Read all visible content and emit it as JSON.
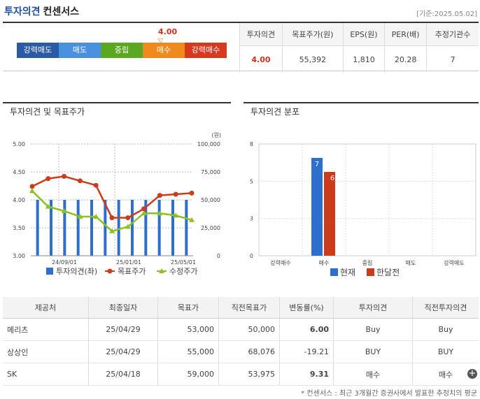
{
  "header": {
    "title_part1": "투자의견",
    "title_part2": "컨센서스",
    "date": "[기준:2025.05.02]"
  },
  "gauge": {
    "current_value": "4.00",
    "indicator": "▽",
    "segments": [
      {
        "label": "강력매도",
        "color": "#2a5aa5"
      },
      {
        "label": "매도",
        "color": "#4a90e0"
      },
      {
        "label": "중립",
        "color": "#5aa820"
      },
      {
        "label": "매수",
        "color": "#f08a1c"
      },
      {
        "label": "강력매수",
        "color": "#d8381e"
      }
    ]
  },
  "consensus_table": {
    "headers": [
      "투자의견",
      "목표주가(원)",
      "EPS(원)",
      "PER(배)",
      "추정기관수"
    ],
    "values": [
      "4.00",
      "55,392",
      "1,810",
      "20.28",
      "7"
    ]
  },
  "left_panel_title": "투자의견 및 목표주가",
  "right_panel_title": "투자의견 분포",
  "chart_data": [
    {
      "type": "bar+line",
      "title": "투자의견 및 목표주가",
      "left_axis": {
        "ticks": [
          "5.00",
          "4.50",
          "4.00",
          "3.50",
          "3.00"
        ],
        "ylim": [
          3.0,
          5.0
        ]
      },
      "right_axis": {
        "unit": "(원)",
        "ticks": [
          "100,000",
          "75,000",
          "50,000",
          "25,000",
          "0"
        ],
        "ylim": [
          0,
          100000
        ]
      },
      "x_ticks": [
        "24/09/01",
        "25/01/01",
        "25/05/01"
      ],
      "series": [
        {
          "name": "투자의견(좌)",
          "type": "bar",
          "color": "#2d6fcf",
          "values": [
            4.0,
            4.0,
            4.0,
            4.0,
            4.0,
            4.0,
            4.0,
            4.0,
            4.0,
            4.0,
            4.0,
            4.0
          ]
        },
        {
          "name": "목표주가",
          "type": "line",
          "color": "#cc3b1a",
          "values": [
            62000,
            69000,
            71000,
            67000,
            63000,
            34000,
            34000,
            42000,
            54000,
            55000,
            56000
          ]
        },
        {
          "name": "수정주가",
          "type": "line",
          "color": "#8cc21f",
          "values": [
            58000,
            44000,
            40000,
            35000,
            35000,
            22000,
            26000,
            38000,
            38000,
            36000,
            32000
          ]
        }
      ]
    },
    {
      "type": "bar",
      "title": "투자의견 분포",
      "categories": [
        "강력매수",
        "매수",
        "중립",
        "매도",
        "강력매도"
      ],
      "ylim": [
        0,
        8
      ],
      "y_ticks": [
        "8",
        "5",
        "3",
        "0"
      ],
      "series": [
        {
          "name": "현재",
          "color": "#2d6fcf",
          "values": [
            0,
            7,
            0,
            0,
            0
          ]
        },
        {
          "name": "한달전",
          "color": "#cc3b1a",
          "values": [
            0,
            6,
            0,
            0,
            0
          ]
        }
      ],
      "data_labels": [
        "7",
        "6"
      ]
    }
  ],
  "opinions_table": {
    "headers": [
      "제공처",
      "최종일자",
      "목표가",
      "직전목표가",
      "변동률(%)",
      "투자의견",
      "직전투자의견"
    ],
    "rows": [
      [
        "메리츠",
        "25/04/29",
        "53,000",
        "50,000",
        "6.00",
        "Buy",
        "Buy"
      ],
      [
        "상상인",
        "25/04/29",
        "55,000",
        "68,076",
        "-19.21",
        "BUY",
        "BUY"
      ],
      [
        "SK",
        "25/04/18",
        "59,000",
        "53,975",
        "9.31",
        "매수",
        "매수"
      ]
    ]
  },
  "more_button": "+",
  "footnote": "* 컨센서스 : 최근 3개월간 증권사에서 발표한 추정치의 평균"
}
